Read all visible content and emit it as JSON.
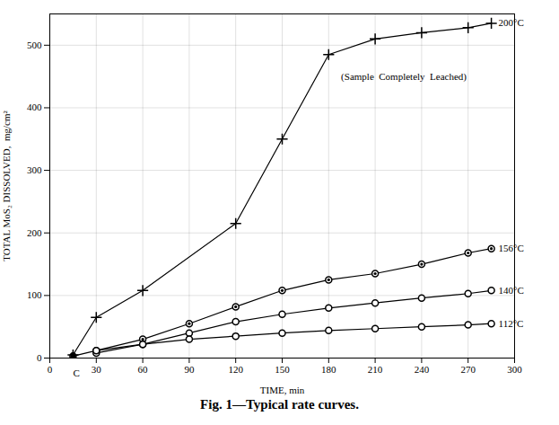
{
  "chart_data": {
    "type": "line",
    "title": "Fig. 1—Typical rate curves.",
    "xlabel": "TIME, min",
    "ylabel": "TOTAL MoS₂ DISSOLVED,  mg/cm²",
    "xlim": [
      0,
      300
    ],
    "ylim": [
      0,
      550
    ],
    "xticks": [
      0,
      30,
      60,
      90,
      120,
      150,
      180,
      210,
      240,
      270,
      300
    ],
    "yticks": [
      0,
      100,
      200,
      300,
      400,
      500
    ],
    "grid": true,
    "series": [
      {
        "name": "200°C",
        "color": "#000000",
        "marker": "plus",
        "x": [
          15,
          30,
          60,
          120,
          150,
          180,
          210,
          240,
          270,
          285
        ],
        "values": [
          5,
          65,
          108,
          215,
          350,
          485,
          510,
          520,
          528,
          535
        ]
      },
      {
        "name": "156°C",
        "color": "#000000",
        "marker": "dotted_circle",
        "x": [
          30,
          60,
          90,
          120,
          150,
          180,
          210,
          240,
          270,
          285
        ],
        "values": [
          12,
          30,
          55,
          82,
          108,
          125,
          135,
          150,
          168,
          175
        ]
      },
      {
        "name": "140°C",
        "color": "#000000",
        "marker": "open_circle",
        "x": [
          30,
          60,
          90,
          120,
          150,
          180,
          210,
          240,
          270,
          285
        ],
        "values": [
          8,
          22,
          40,
          58,
          70,
          80,
          88,
          96,
          103,
          108
        ]
      },
      {
        "name": "112°C",
        "color": "#000000",
        "marker": "open_circle",
        "x": [
          15,
          30,
          60,
          90,
          120,
          150,
          180,
          210,
          240,
          270,
          285
        ],
        "values": [
          3,
          12,
          22,
          30,
          35,
          40,
          44,
          47,
          50,
          53,
          55
        ]
      },
      {
        "type": "scatter",
        "color": "#000000",
        "marker": "filled_circle",
        "x": [
          15,
          15
        ],
        "values": [
          5,
          3
        ]
      }
    ],
    "annotations": [
      {
        "text": "(Sample  Completely  Leached)",
        "x": 188,
        "y": 455
      },
      {
        "text": "C",
        "x": 15,
        "y": -18
      }
    ]
  }
}
